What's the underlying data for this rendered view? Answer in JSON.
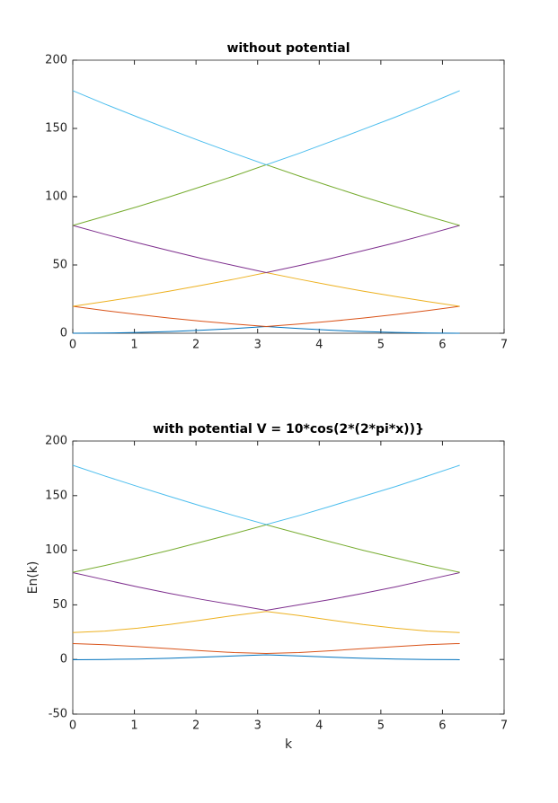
{
  "chart_data": [
    {
      "type": "line",
      "title": "without potential",
      "x": [
        0,
        0.52,
        1.05,
        1.57,
        2.09,
        2.62,
        3.14,
        3.67,
        4.19,
        4.71,
        5.24,
        5.76,
        6.28
      ],
      "xlim": [
        0,
        7
      ],
      "xticks": [
        0,
        1,
        2,
        3,
        4,
        5,
        6,
        7
      ],
      "ylim": [
        0,
        200
      ],
      "yticks": [
        0,
        50,
        100,
        150,
        200
      ],
      "series": [
        {
          "color": "#0072BD",
          "values": [
            0,
            0.14,
            0.55,
            1.23,
            2.19,
            3.43,
            4.93,
            3.43,
            2.19,
            1.23,
            0.55,
            0.14,
            0
          ]
        },
        {
          "color": "#D95319",
          "values": [
            19.74,
            16.58,
            13.71,
            11.1,
            8.77,
            6.72,
            4.93,
            6.72,
            8.77,
            11.1,
            13.71,
            16.58,
            19.74
          ]
        },
        {
          "color": "#EDB120",
          "values": [
            19.74,
            23.17,
            26.87,
            30.84,
            35.1,
            39.6,
            44.41,
            39.6,
            35.1,
            30.84,
            26.87,
            23.17,
            19.74
          ]
        },
        {
          "color": "#7E2F8E",
          "values": [
            78.96,
            72.5,
            66.3,
            60.46,
            54.8,
            49.5,
            44.41,
            49.5,
            54.8,
            60.46,
            66.3,
            72.5,
            78.96
          ]
        },
        {
          "color": "#77AC30",
          "values": [
            78.96,
            85.7,
            92.7,
            99.93,
            107.5,
            115.2,
            123.4,
            115.2,
            107.5,
            99.93,
            92.7,
            85.7,
            78.96
          ]
        },
        {
          "color": "#4DBEEE",
          "values": [
            177.65,
            167.9,
            158.4,
            149.3,
            140.4,
            131.7,
            123.4,
            131.7,
            140.4,
            149.3,
            158.4,
            167.9,
            177.65
          ]
        }
      ]
    },
    {
      "type": "line",
      "title": "with potential V = 10*cos(2*(2*pi*x))}",
      "x_label": "k",
      "y_label": "En(k)",
      "x": [
        0,
        0.52,
        1.05,
        1.57,
        2.09,
        2.62,
        3.14,
        3.67,
        4.19,
        4.71,
        5.24,
        5.76,
        6.28
      ],
      "xlim": [
        0,
        7
      ],
      "xticks": [
        0,
        1,
        2,
        3,
        4,
        5,
        6,
        7
      ],
      "ylim": [
        -50,
        200
      ],
      "yticks": [
        -50,
        0,
        50,
        100,
        150,
        200
      ],
      "series": [
        {
          "color": "#0072BD",
          "values": [
            -0.2,
            0,
            0.4,
            1.1,
            2.1,
            3.2,
            4.3,
            3.2,
            2.1,
            1.1,
            0.4,
            0,
            -0.2
          ]
        },
        {
          "color": "#D95319",
          "values": [
            14.6,
            13.5,
            11.8,
            9.9,
            8,
            6.3,
            5.5,
            6.3,
            8,
            9.9,
            11.8,
            13.5,
            14.6
          ]
        },
        {
          "color": "#EDB120",
          "values": [
            24.6,
            26,
            28.6,
            32,
            36,
            40.3,
            44,
            40.3,
            36,
            32,
            28.6,
            26,
            24.6
          ]
        },
        {
          "color": "#7E2F8E",
          "values": [
            79.5,
            73,
            66.5,
            60.5,
            55,
            50,
            45,
            50,
            55,
            60.5,
            66.5,
            73,
            79.5
          ]
        },
        {
          "color": "#77AC30",
          "values": [
            79.8,
            86,
            92.9,
            100,
            107.6,
            115.3,
            123.3,
            115.3,
            107.6,
            100,
            92.9,
            86,
            79.8
          ]
        },
        {
          "color": "#4DBEEE",
          "values": [
            177.8,
            168,
            158.4,
            149.3,
            140.4,
            131.7,
            123.5,
            131.7,
            140.4,
            149.3,
            158.4,
            168,
            177.8
          ]
        }
      ]
    }
  ]
}
